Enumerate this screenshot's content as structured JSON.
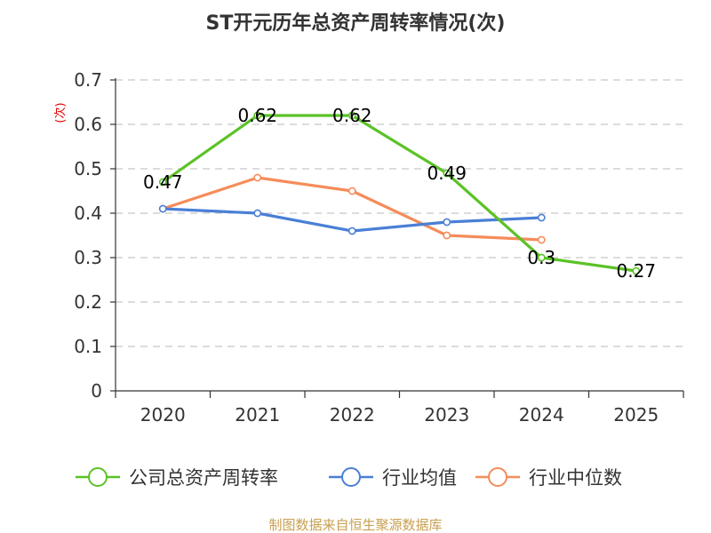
{
  "chart_data": {
    "type": "line",
    "title": "ST开元历年总资产周转率情况(次)",
    "ylabel": "(次)",
    "xlabel": "",
    "categories": [
      "2020",
      "2021",
      "2022",
      "2023",
      "2024",
      "2025"
    ],
    "ylim": [
      0,
      0.7
    ],
    "yticks": [
      "0",
      "0.1",
      "0.2",
      "0.3",
      "0.4",
      "0.5",
      "0.6",
      "0.7"
    ],
    "grid": true,
    "legend_position": "bottom",
    "series": [
      {
        "name": "公司总资产周转率",
        "color": "#5bc227",
        "values": [
          0.47,
          0.62,
          0.62,
          0.49,
          0.3,
          0.27
        ],
        "labels": [
          "0.47",
          "0.62",
          "0.62",
          "0.49",
          "0.3",
          "0.27"
        ]
      },
      {
        "name": "行业均值",
        "color": "#4a7fd6",
        "values": [
          0.41,
          0.4,
          0.36,
          0.38,
          0.39,
          null
        ]
      },
      {
        "name": "行业中位数",
        "color": "#f58c5a",
        "values": [
          0.41,
          0.48,
          0.45,
          0.35,
          0.34,
          null
        ]
      }
    ],
    "source": "制图数据来自恒生聚源数据库"
  }
}
